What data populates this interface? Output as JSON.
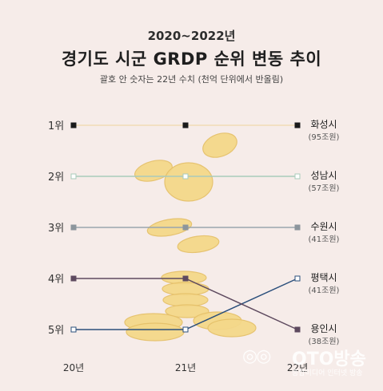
{
  "header": {
    "subtitle": "2020~2022년",
    "title": "경기도 시군 GRDP 순위 변동 추이",
    "note": "괄호 안 숫자는 22년 수치 (천억 단위에서 반올림)"
  },
  "chart_data": {
    "type": "line",
    "x": [
      "20년",
      "21년",
      "22년"
    ],
    "y_categories": [
      "1위",
      "2위",
      "3위",
      "4위",
      "5위"
    ],
    "y_direction": "rank (1 at top)",
    "grid": false,
    "series": [
      {
        "name": "화성시",
        "values": [
          1,
          1,
          1
        ],
        "annotation": "(95조원)",
        "color": "#f0dcb6",
        "marker": "#1a1a1a"
      },
      {
        "name": "성남시",
        "values": [
          2,
          2,
          2
        ],
        "annotation": "(57조원)",
        "color": "#a9cbbb",
        "marker": "#ffffff"
      },
      {
        "name": "수원시",
        "values": [
          3,
          3,
          3
        ],
        "annotation": "(41조원)",
        "color": "#9aa5ad",
        "marker": "#8c959c"
      },
      {
        "name": "평택시",
        "values": [
          5,
          5,
          4
        ],
        "annotation": "(41조원)",
        "color": "#2b4f7b",
        "marker": "#ffffff"
      },
      {
        "name": "용인시",
        "values": [
          4,
          4,
          5
        ],
        "annotation": "(38조원)",
        "color": "#5e4a5f",
        "marker": "#5e4a5f"
      }
    ]
  },
  "watermark": {
    "logo": "OTO",
    "name": "OTO방송",
    "tagline": "종합미디어 인터넷 방송"
  }
}
